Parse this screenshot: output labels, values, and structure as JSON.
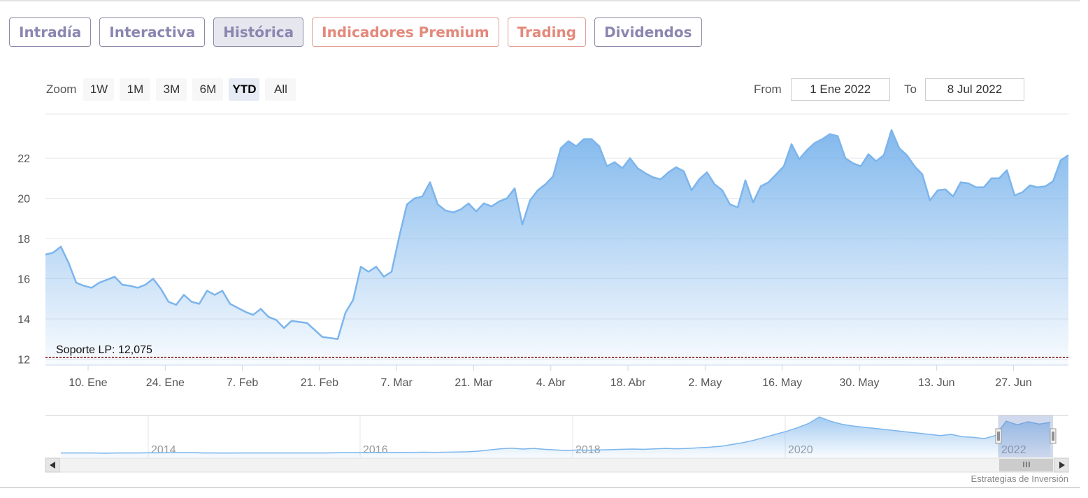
{
  "tabs": [
    {
      "label": "Intradía",
      "active": false,
      "premium": false
    },
    {
      "label": "Interactiva",
      "active": false,
      "premium": false
    },
    {
      "label": "Histórica",
      "active": true,
      "premium": false
    },
    {
      "label": "Indicadores Premium",
      "active": false,
      "premium": true
    },
    {
      "label": "Trading",
      "active": false,
      "premium": true
    },
    {
      "label": "Dividendos",
      "active": false,
      "premium": false
    }
  ],
  "zoom": {
    "label": "Zoom",
    "buttons": [
      "1W",
      "1M",
      "3M",
      "6M",
      "YTD",
      "All"
    ],
    "selected": "YTD"
  },
  "range": {
    "from_label": "From",
    "from_value": "1 Ene 2022",
    "to_label": "To",
    "to_value": "8 Jul 2022"
  },
  "credit": "Estrategias de Inversión",
  "colors": {
    "line": "#7cb5ec",
    "support": "#8b1a1a"
  },
  "chart_data": {
    "type": "area",
    "x_tick_labels": [
      "10. Ene",
      "24. Ene",
      "7. Feb",
      "21. Feb",
      "7. Mar",
      "21. Mar",
      "4. Abr",
      "18. Abr",
      "2. May",
      "16. May",
      "30. May",
      "13. Jun",
      "27. Jun"
    ],
    "y_ticks": [
      12,
      14,
      16,
      18,
      20,
      22
    ],
    "ylim": [
      11.7,
      24.2
    ],
    "grid": true,
    "support": {
      "label": "Soporte LP: 12,075",
      "value": 12.075
    },
    "values": [
      17.2,
      17.3,
      17.6,
      16.8,
      15.8,
      15.65,
      15.55,
      15.8,
      15.95,
      16.1,
      15.7,
      15.65,
      15.55,
      15.7,
      16.0,
      15.5,
      14.85,
      14.7,
      15.2,
      14.85,
      14.75,
      15.4,
      15.2,
      15.4,
      14.75,
      14.55,
      14.35,
      14.2,
      14.5,
      14.1,
      13.95,
      13.55,
      13.9,
      13.85,
      13.8,
      13.45,
      13.1,
      13.05,
      13.0,
      14.3,
      14.95,
      16.6,
      16.35,
      16.6,
      16.1,
      16.35,
      18.1,
      19.7,
      20.0,
      20.1,
      20.8,
      19.7,
      19.4,
      19.3,
      19.45,
      19.75,
      19.35,
      19.75,
      19.6,
      19.85,
      20.0,
      20.5,
      18.7,
      19.9,
      20.4,
      20.7,
      21.1,
      22.5,
      22.85,
      22.6,
      22.95,
      22.95,
      22.6,
      21.6,
      21.8,
      21.5,
      22.0,
      21.5,
      21.25,
      21.05,
      20.95,
      21.3,
      21.55,
      21.35,
      20.4,
      20.95,
      21.3,
      20.7,
      20.4,
      19.7,
      19.55,
      20.9,
      19.8,
      20.6,
      20.8,
      21.2,
      21.6,
      22.7,
      21.95,
      22.4,
      22.75,
      22.95,
      23.2,
      23.1,
      22.0,
      21.75,
      21.6,
      22.2,
      21.85,
      22.15,
      23.4,
      22.5,
      22.15,
      21.6,
      21.2,
      19.9,
      20.4,
      20.45,
      20.1,
      20.8,
      20.75,
      20.55,
      20.55,
      21.0,
      21.0,
      21.4,
      20.15,
      20.3,
      20.65,
      20.55,
      20.6,
      20.85,
      21.9,
      22.15
    ]
  },
  "navigator": {
    "year_labels": [
      "2014",
      "2016",
      "2018",
      "2020",
      "2022"
    ],
    "values": [
      11.0,
      11.0,
      11.0,
      11.0,
      10.9,
      11.0,
      11.0,
      11.0,
      11.05,
      11.05,
      11.1,
      11.1,
      11.1,
      11.0,
      11.0,
      10.95,
      11.0,
      11.0,
      11.0,
      11.0,
      11.0,
      11.0,
      11.0,
      11.0,
      11.0,
      11.05,
      11.1,
      11.1,
      11.15,
      11.15,
      11.15,
      11.2,
      11.2,
      11.25,
      11.2,
      11.25,
      11.3,
      11.4,
      11.6,
      12.0,
      12.4,
      12.6,
      12.3,
      12.5,
      12.2,
      12.0,
      11.8,
      12.0,
      11.9,
      12.0,
      12.1,
      12.2,
      12.3,
      12.2,
      12.35,
      12.5,
      12.4,
      12.5,
      12.7,
      12.9,
      13.2,
      13.8,
      14.4,
      15.2,
      16.2,
      17.2,
      18.2,
      19.4,
      20.8,
      23.0,
      21.6,
      20.6,
      20.0,
      19.6,
      19.2,
      18.8,
      18.4,
      18.0,
      17.6,
      17.2,
      16.8,
      17.2,
      16.4,
      16.2,
      15.8,
      16.8,
      21.6,
      20.4,
      21.4,
      20.6,
      21.2
    ]
  }
}
